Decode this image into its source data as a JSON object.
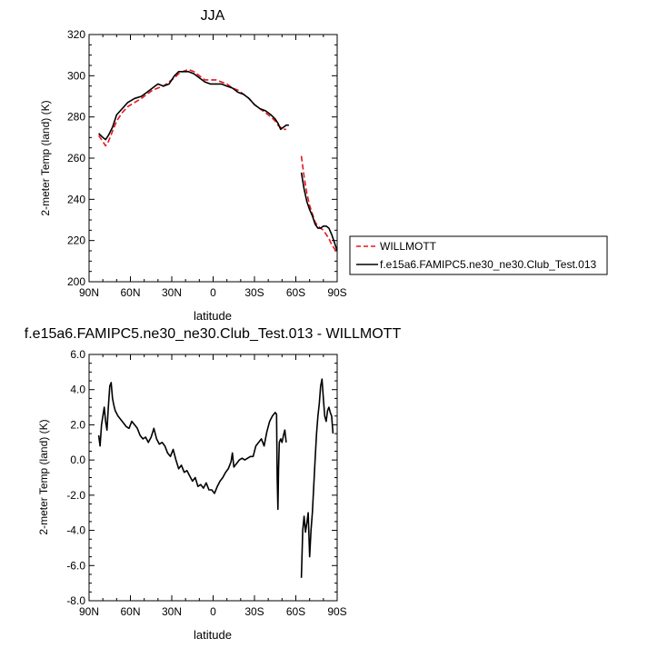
{
  "chart_data": [
    {
      "type": "line",
      "title": "JJA",
      "xlabel": "latitude",
      "ylabel": "2-meter Temp (land) (K)",
      "xlim": [
        90,
        -90
      ],
      "ylim": [
        200,
        320
      ],
      "x_ticks": [
        90,
        60,
        30,
        0,
        -30,
        -60,
        -90
      ],
      "x_tick_labels": [
        "90N",
        "60N",
        "30N",
        "0",
        "30S",
        "60S",
        "90S"
      ],
      "y_ticks": [
        200,
        220,
        240,
        260,
        280,
        300,
        320
      ],
      "y_tick_labels": [
        "200",
        "220",
        "240",
        "260",
        "280",
        "300",
        "320"
      ],
      "grid": false,
      "legend": "right",
      "series": [
        {
          "name": "WILLMOTT",
          "color": "#e8141e",
          "dash": true,
          "segments": [
            [
              [
                83,
                271
              ],
              [
                80,
                268
              ],
              [
                78,
                266
              ],
              [
                76,
                268
              ],
              [
                73,
                273
              ],
              [
                70,
                278
              ],
              [
                66,
                282
              ],
              [
                62,
                285
              ],
              [
                57,
                287
              ],
              [
                52,
                289
              ],
              [
                48,
                291
              ],
              [
                44,
                293
              ],
              [
                40,
                294
              ],
              [
                36,
                295
              ],
              [
                32,
                297
              ],
              [
                28,
                299
              ],
              [
                25,
                301
              ],
              [
                22,
                302
              ],
              [
                18,
                303
              ],
              [
                14,
                302
              ],
              [
                10,
                300
              ],
              [
                6,
                298
              ],
              [
                2,
                298
              ],
              [
                -2,
                298
              ],
              [
                -6,
                297
              ],
              [
                -10,
                296
              ],
              [
                -14,
                294
              ],
              [
                -18,
                293
              ],
              [
                -22,
                291
              ],
              [
                -26,
                289
              ],
              [
                -30,
                286
              ],
              [
                -34,
                284
              ],
              [
                -38,
                282
              ],
              [
                -42,
                280
              ],
              [
                -45,
                278
              ],
              [
                -47,
                276
              ],
              [
                -49,
                275
              ],
              [
                -51,
                274
              ],
              [
                -53,
                274
              ]
            ],
            [
              [
                -64,
                261
              ],
              [
                -66,
                251
              ],
              [
                -68,
                243
              ],
              [
                -70,
                237
              ],
              [
                -72,
                233
              ],
              [
                -74,
                229
              ],
              [
                -76,
                227
              ],
              [
                -78,
                226
              ],
              [
                -80,
                225
              ],
              [
                -82,
                223
              ],
              [
                -84,
                221
              ],
              [
                -86,
                218
              ],
              [
                -88,
                216
              ],
              [
                -90,
                214
              ]
            ]
          ]
        },
        {
          "name": "f.e15a6.FAMIPC5.ne30_ne30.Club_Test.013",
          "color": "#000000",
          "dash": false,
          "segments": [
            [
              [
                83,
                272
              ],
              [
                80,
                270
              ],
              [
                78,
                269
              ],
              [
                76,
                271
              ],
              [
                73,
                275
              ],
              [
                70,
                281
              ],
              [
                66,
                284
              ],
              [
                62,
                287
              ],
              [
                57,
                289
              ],
              [
                52,
                290
              ],
              [
                48,
                292
              ],
              [
                44,
                294
              ],
              [
                40,
                296
              ],
              [
                36,
                295
              ],
              [
                32,
                296
              ],
              [
                28,
                300
              ],
              [
                25,
                302
              ],
              [
                22,
                302
              ],
              [
                18,
                302
              ],
              [
                14,
                301
              ],
              [
                10,
                299
              ],
              [
                6,
                297
              ],
              [
                2,
                296
              ],
              [
                -2,
                296
              ],
              [
                -6,
                296
              ],
              [
                -10,
                295
              ],
              [
                -14,
                294
              ],
              [
                -18,
                292
              ],
              [
                -22,
                291
              ],
              [
                -26,
                289
              ],
              [
                -30,
                286
              ],
              [
                -34,
                284
              ],
              [
                -38,
                283
              ],
              [
                -42,
                281
              ],
              [
                -45,
                279
              ],
              [
                -47,
                277
              ],
              [
                -49,
                274
              ],
              [
                -51,
                275
              ],
              [
                -53,
                276
              ],
              [
                -55,
                276
              ]
            ],
            [
              [
                -64,
                253
              ],
              [
                -66,
                245
              ],
              [
                -68,
                239
              ],
              [
                -70,
                235
              ],
              [
                -72,
                232
              ],
              [
                -74,
                228
              ],
              [
                -76,
                226
              ],
              [
                -78,
                226
              ],
              [
                -80,
                227
              ],
              [
                -82,
                227
              ],
              [
                -84,
                226
              ],
              [
                -86,
                223
              ],
              [
                -88,
                219
              ],
              [
                -90,
                215
              ]
            ]
          ]
        }
      ]
    },
    {
      "type": "line",
      "title": "f.e15a6.FAMIPC5.ne30_ne30.Club_Test.013 - WILLMOTT",
      "xlabel": "latitude",
      "ylabel": "2-meter Temp (land) (K)",
      "xlim": [
        90,
        -90
      ],
      "ylim": [
        -8,
        6
      ],
      "x_ticks": [
        90,
        60,
        30,
        0,
        -30,
        -60,
        -90
      ],
      "x_tick_labels": [
        "90N",
        "60N",
        "30N",
        "0",
        "30S",
        "60S",
        "90S"
      ],
      "y_ticks": [
        6,
        4,
        2,
        0,
        -2,
        -4,
        -6,
        -8
      ],
      "y_tick_labels": [
        "6.0",
        "4.0",
        "2.0",
        "0.0",
        "-2.0",
        "-4.0",
        "-6.0",
        "-8.0"
      ],
      "grid": false,
      "series": [
        {
          "color": "#000000",
          "segments": [
            [
              [
                83,
                1.4
              ],
              [
                82,
                0.8
              ],
              [
                81,
                2.0
              ],
              [
                79,
                3.0
              ],
              [
                78,
                2.2
              ],
              [
                77,
                1.7
              ],
              [
                76,
                3.0
              ],
              [
                75,
                4.2
              ],
              [
                74,
                4.4
              ],
              [
                73,
                3.5
              ],
              [
                72,
                3.1
              ],
              [
                71,
                2.8
              ],
              [
                69,
                2.5
              ],
              [
                67,
                2.3
              ],
              [
                65,
                2.1
              ],
              [
                63,
                1.9
              ],
              [
                61,
                1.8
              ],
              [
                59,
                2.2
              ],
              [
                57,
                2.0
              ],
              [
                55,
                1.8
              ],
              [
                53,
                1.4
              ],
              [
                51,
                1.2
              ],
              [
                49,
                1.3
              ],
              [
                47,
                1.0
              ],
              [
                45,
                1.3
              ],
              [
                43,
                1.8
              ],
              [
                41,
                1.2
              ],
              [
                39,
                0.9
              ],
              [
                37,
                1.0
              ],
              [
                35,
                0.8
              ],
              [
                33,
                0.4
              ],
              [
                31,
                0.2
              ],
              [
                29,
                0.6
              ],
              [
                27,
                0.0
              ],
              [
                25,
                -0.5
              ],
              [
                23,
                -0.3
              ],
              [
                21,
                -0.7
              ],
              [
                19,
                -0.6
              ],
              [
                17,
                -0.9
              ],
              [
                15,
                -1.2
              ],
              [
                13,
                -1.0
              ],
              [
                11,
                -1.5
              ],
              [
                9,
                -1.4
              ],
              [
                7,
                -1.6
              ],
              [
                5,
                -1.3
              ],
              [
                3,
                -1.7
              ],
              [
                1,
                -1.7
              ],
              [
                -1,
                -1.9
              ],
              [
                -3,
                -1.5
              ],
              [
                -5,
                -1.2
              ],
              [
                -7,
                -1.0
              ],
              [
                -9,
                -0.7
              ],
              [
                -11,
                -0.5
              ],
              [
                -13,
                -0.1
              ],
              [
                -14,
                0.4
              ],
              [
                -15,
                -0.4
              ],
              [
                -17,
                -0.2
              ],
              [
                -19,
                0.0
              ],
              [
                -21,
                0.1
              ],
              [
                -23,
                0.0
              ],
              [
                -25,
                0.1
              ],
              [
                -27,
                0.2
              ],
              [
                -29,
                0.2
              ],
              [
                -31,
                0.8
              ],
              [
                -33,
                1.0
              ],
              [
                -35,
                1.2
              ],
              [
                -37,
                0.8
              ],
              [
                -39,
                1.6
              ],
              [
                -41,
                2.2
              ],
              [
                -43,
                2.5
              ],
              [
                -45,
                2.7
              ],
              [
                -46,
                2.6
              ],
              [
                -46.5,
                -1.0
              ],
              [
                -47,
                -2.8
              ],
              [
                -47.5,
                -0.5
              ],
              [
                -48,
                1.0
              ],
              [
                -49,
                1.2
              ],
              [
                -50,
                1.0
              ],
              [
                -51,
                1.4
              ],
              [
                -52,
                1.7
              ],
              [
                -53,
                1.0
              ]
            ],
            [
              [
                -64,
                -6.7
              ],
              [
                -65,
                -4.0
              ],
              [
                -66,
                -3.2
              ],
              [
                -67,
                -4.1
              ],
              [
                -68,
                -3.6
              ],
              [
                -69,
                -3.0
              ],
              [
                -70,
                -5.5
              ],
              [
                -71,
                -4.0
              ],
              [
                -72,
                -3.0
              ],
              [
                -73,
                -1.5
              ],
              [
                -74,
                0.0
              ],
              [
                -75,
                1.5
              ],
              [
                -76,
                2.5
              ],
              [
                -77,
                3.2
              ],
              [
                -78,
                4.2
              ],
              [
                -79,
                4.6
              ],
              [
                -80,
                3.5
              ],
              [
                -81,
                2.5
              ],
              [
                -82,
                2.2
              ],
              [
                -83,
                2.8
              ],
              [
                -84,
                3.0
              ],
              [
                -85,
                2.7
              ],
              [
                -86,
                2.5
              ],
              [
                -87,
                1.5
              ]
            ]
          ]
        }
      ]
    }
  ]
}
